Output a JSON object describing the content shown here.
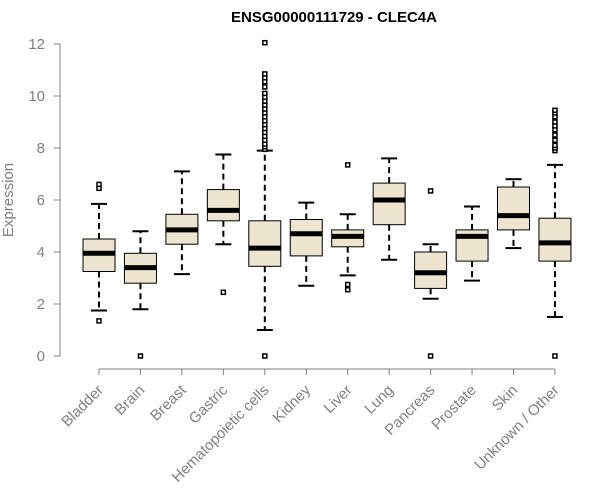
{
  "chart_data": {
    "type": "boxplot",
    "title": "ENSG00000111729 - CLEC4A",
    "xlabel": "",
    "ylabel": "Expression",
    "ylim": [
      0,
      12
    ],
    "yticks": [
      0,
      2,
      4,
      6,
      8,
      10,
      12
    ],
    "colors": {
      "box_fill": "#ede5cf",
      "box_stroke": "#000000",
      "axis": "#808080"
    },
    "categories": [
      "Bladder",
      "Brain",
      "Breast",
      "Gastric",
      "Hematopoietic cells",
      "Kidney",
      "Liver",
      "Lung",
      "Pancreas",
      "Prostate",
      "Skin",
      "Unknown / Other"
    ],
    "boxes": [
      {
        "name": "Bladder",
        "whisker_low": 1.75,
        "q1": 3.25,
        "median": 3.95,
        "q3": 4.5,
        "whisker_high": 5.85,
        "outliers": [
          1.35,
          6.45,
          6.6
        ]
      },
      {
        "name": "Brain",
        "whisker_low": 1.8,
        "q1": 2.8,
        "median": 3.4,
        "q3": 3.95,
        "whisker_high": 4.8,
        "outliers": [
          0.0
        ]
      },
      {
        "name": "Breast",
        "whisker_low": 3.15,
        "q1": 4.3,
        "median": 4.85,
        "q3": 5.45,
        "whisker_high": 7.1,
        "outliers": []
      },
      {
        "name": "Gastric",
        "whisker_low": 4.3,
        "q1": 5.2,
        "median": 5.6,
        "q3": 6.4,
        "whisker_high": 7.75,
        "outliers": [
          2.45
        ]
      },
      {
        "name": "Hematopoietic cells",
        "whisker_low": 1.0,
        "q1": 3.45,
        "median": 4.15,
        "q3": 5.2,
        "whisker_high": 7.9,
        "outliers": [
          0.0,
          7.95,
          8.05,
          8.15,
          8.3,
          8.45,
          8.6,
          8.75,
          8.9,
          9.05,
          9.2,
          9.35,
          9.5,
          9.65,
          9.8,
          9.95,
          10.1,
          10.35,
          10.55,
          10.7,
          10.85,
          12.05
        ]
      },
      {
        "name": "Kidney",
        "whisker_low": 2.7,
        "q1": 3.85,
        "median": 4.7,
        "q3": 5.25,
        "whisker_high": 5.9,
        "outliers": []
      },
      {
        "name": "Liver",
        "whisker_low": 3.1,
        "q1": 4.2,
        "median": 4.6,
        "q3": 4.85,
        "whisker_high": 5.45,
        "outliers": [
          2.55,
          2.75,
          7.35
        ]
      },
      {
        "name": "Lung",
        "whisker_low": 3.7,
        "q1": 5.05,
        "median": 6.0,
        "q3": 6.65,
        "whisker_high": 7.6,
        "outliers": []
      },
      {
        "name": "Pancreas",
        "whisker_low": 2.2,
        "q1": 2.6,
        "median": 3.2,
        "q3": 4.0,
        "whisker_high": 4.3,
        "outliers": [
          0.0,
          6.35
        ]
      },
      {
        "name": "Prostate",
        "whisker_low": 2.9,
        "q1": 3.65,
        "median": 4.6,
        "q3": 4.85,
        "whisker_high": 5.75,
        "outliers": []
      },
      {
        "name": "Skin",
        "whisker_low": 4.15,
        "q1": 4.85,
        "median": 5.4,
        "q3": 6.5,
        "whisker_high": 6.8,
        "outliers": []
      },
      {
        "name": "Unknown / Other",
        "whisker_low": 1.5,
        "q1": 3.65,
        "median": 4.35,
        "q3": 5.3,
        "whisker_high": 7.35,
        "outliers": [
          0.0,
          7.9,
          8.0,
          8.1,
          8.3,
          8.5,
          8.7,
          8.85,
          9.0,
          9.2,
          9.35,
          9.45
        ]
      }
    ]
  }
}
